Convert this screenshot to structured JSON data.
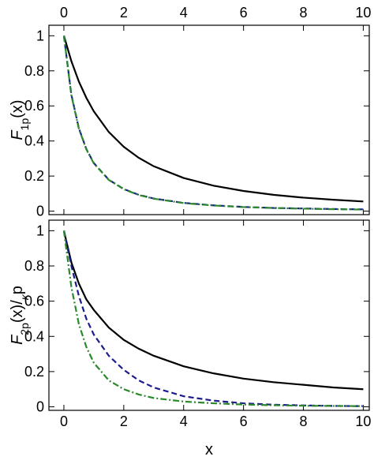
{
  "chart_data": [
    {
      "type": "line",
      "xaxis_position": "top",
      "ylabel": [
        "F",
        "1p",
        "(x)"
      ],
      "x": [
        0,
        0.25,
        0.5,
        0.75,
        1,
        1.5,
        2,
        2.5,
        3,
        4,
        5,
        6,
        7,
        8,
        9,
        10
      ],
      "xlim": [
        -0.5,
        10.2
      ],
      "ylim": [
        -0.02,
        1.06
      ],
      "xticks": [
        0,
        2,
        4,
        6,
        8,
        10
      ],
      "yticks": [
        0,
        0.2,
        0.4,
        0.6,
        0.8,
        1
      ],
      "series": [
        {
          "color": "#000000",
          "dash": "none",
          "values": [
            1,
            0.855,
            0.739,
            0.646,
            0.569,
            0.451,
            0.367,
            0.304,
            0.256,
            0.189,
            0.145,
            0.115,
            0.093,
            0.077,
            0.065,
            0.055
          ]
        },
        {
          "color": "#1c1c8c",
          "dash": "7,4",
          "values": [
            1,
            0.664,
            0.473,
            0.354,
            0.274,
            0.179,
            0.126,
            0.093,
            0.072,
            0.047,
            0.033,
            0.024,
            0.018,
            0.015,
            0.012,
            0.01
          ]
        },
        {
          "color": "#2a8a2a",
          "dash": "8,3,2,3",
          "values": [
            1,
            0.66,
            0.47,
            0.352,
            0.272,
            0.178,
            0.125,
            0.092,
            0.071,
            0.046,
            0.032,
            0.023,
            0.018,
            0.014,
            0.011,
            0.009
          ]
        }
      ]
    },
    {
      "type": "line",
      "xaxis_position": "bottom",
      "xlabel": "x",
      "ylabel": [
        "F",
        "2p",
        "(x)/",
        "κ",
        "p"
      ],
      "x": [
        0,
        0.25,
        0.5,
        0.75,
        1,
        1.5,
        2,
        2.5,
        3,
        4,
        5,
        6,
        7,
        8,
        9,
        10
      ],
      "xlim": [
        -0.5,
        10.2
      ],
      "ylim": [
        -0.02,
        1.06
      ],
      "xticks": [
        0,
        2,
        4,
        6,
        8,
        10
      ],
      "yticks": [
        0,
        0.2,
        0.4,
        0.6,
        0.8,
        1
      ],
      "series": [
        {
          "color": "#000000",
          "dash": "none",
          "values": [
            1,
            0.82,
            0.7,
            0.61,
            0.55,
            0.45,
            0.38,
            0.33,
            0.29,
            0.23,
            0.19,
            0.16,
            0.14,
            0.125,
            0.11,
            0.1
          ]
        },
        {
          "color": "#1c1c8c",
          "dash": "7,4",
          "values": [
            1,
            0.8,
            0.63,
            0.5,
            0.41,
            0.29,
            0.21,
            0.15,
            0.11,
            0.06,
            0.035,
            0.02,
            0.012,
            0.008,
            0.005,
            0.004
          ]
        },
        {
          "color": "#2a8a2a",
          "dash": "8,3,2,3",
          "values": [
            1,
            0.68,
            0.47,
            0.34,
            0.25,
            0.15,
            0.1,
            0.07,
            0.05,
            0.03,
            0.02,
            0.013,
            0.009,
            0.006,
            0.005,
            0.004
          ]
        }
      ]
    }
  ]
}
